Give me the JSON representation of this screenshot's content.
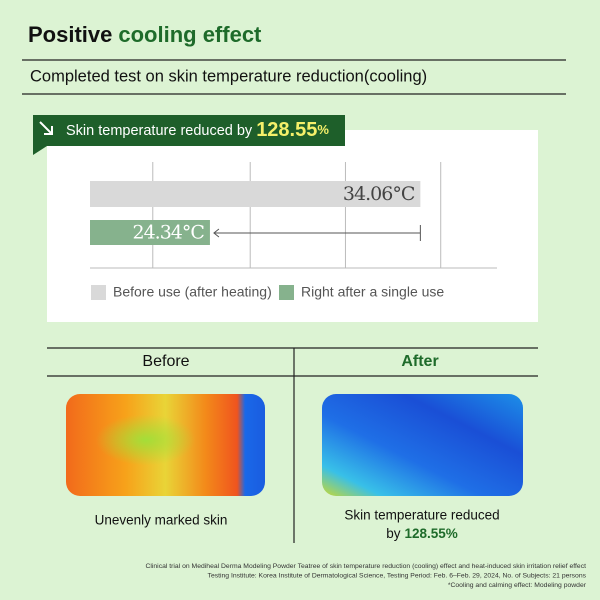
{
  "header": {
    "title_a": "Positive",
    "title_b": "cooling effect",
    "subtitle": "Completed test on skin temperature reduction(cooling)"
  },
  "banner": {
    "text": "Skin temperature reduced by",
    "value": "128.55",
    "unit": "%"
  },
  "chart_data": {
    "type": "bar",
    "orientation": "horizontal",
    "series": [
      {
        "name": "Before use (after heating)",
        "color": "#d9d9d9",
        "values": [
          34.06
        ],
        "value_labels": [
          "34.06°C"
        ]
      },
      {
        "name": "Right after a single use",
        "color": "#86b28d",
        "values": [
          24.34
        ],
        "value_labels": [
          "24.34°C"
        ]
      }
    ],
    "xlim": [
      18.8,
      37.6
    ],
    "xticks": [
      21.7,
      26.2,
      30.6,
      35
    ],
    "grid": true
  },
  "comparison": {
    "before": {
      "heading": "Before",
      "caption": "Unevenly marked skin"
    },
    "after": {
      "heading": "After",
      "caption": "Skin temperature reduced",
      "caption_2": "by",
      "highlight": "128.55%"
    }
  },
  "footnotes": [
    "Clinical trial on Mediheal Derma Modeling Powder Teatree of skin temperature reduction (cooling) effect and heat-induced skin irritation relief effect",
    "Testing Institute: Korea Institute of Dermatological Science, Testing Period: Feb. 6–Feb. 29, 2024, No. of Subjects: 21 persons",
    "*Cooling and calming effect: Modeling powder"
  ]
}
